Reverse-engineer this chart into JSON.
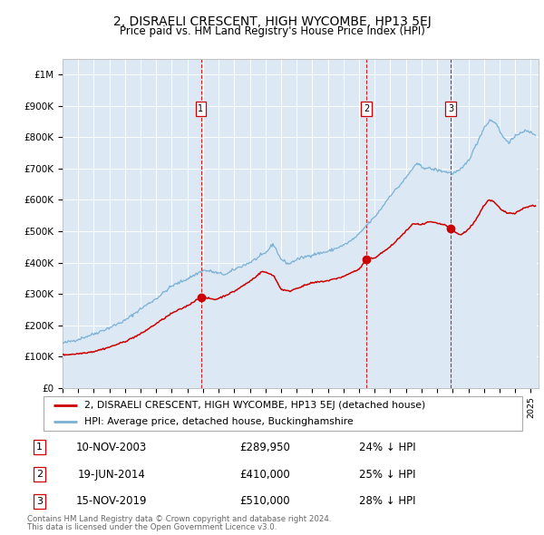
{
  "title": "2, DISRAELI CRESCENT, HIGH WYCOMBE, HP13 5EJ",
  "subtitle": "Price paid vs. HM Land Registry's House Price Index (HPI)",
  "legend_red": "2, DISRAELI CRESCENT, HIGH WYCOMBE, HP13 5EJ (detached house)",
  "legend_blue": "HPI: Average price, detached house, Buckinghamshire",
  "footer1": "Contains HM Land Registry data © Crown copyright and database right 2024.",
  "footer2": "This data is licensed under the Open Government Licence v3.0.",
  "transactions": [
    {
      "num": 1,
      "date": "10-NOV-2003",
      "price": 289950,
      "price_str": "£289,950",
      "pct": "24% ↓ HPI",
      "decimal_date": 2003.86
    },
    {
      "num": 2,
      "date": "19-JUN-2014",
      "price": 410000,
      "price_str": "£410,000",
      "pct": "25% ↓ HPI",
      "decimal_date": 2014.47
    },
    {
      "num": 3,
      "date": "15-NOV-2019",
      "price": 510000,
      "price_str": "£510,000",
      "pct": "28% ↓ HPI",
      "decimal_date": 2019.87
    }
  ],
  "background_color": "#dce9f5",
  "red_color": "#cc0000",
  "blue_color": "#7ab0d4",
  "grid_color": "#ffffff",
  "ylim": [
    0,
    1050000
  ],
  "xlim_start": 1995.0,
  "xlim_end": 2025.5,
  "yticks": [
    0,
    100000,
    200000,
    300000,
    400000,
    500000,
    600000,
    700000,
    800000,
    900000,
    1000000
  ],
  "ylabels": [
    "£0",
    "£100K",
    "£200K",
    "£300K",
    "£400K",
    "£500K",
    "£600K",
    "£700K",
    "£800K",
    "£900K",
    "£1M"
  ]
}
